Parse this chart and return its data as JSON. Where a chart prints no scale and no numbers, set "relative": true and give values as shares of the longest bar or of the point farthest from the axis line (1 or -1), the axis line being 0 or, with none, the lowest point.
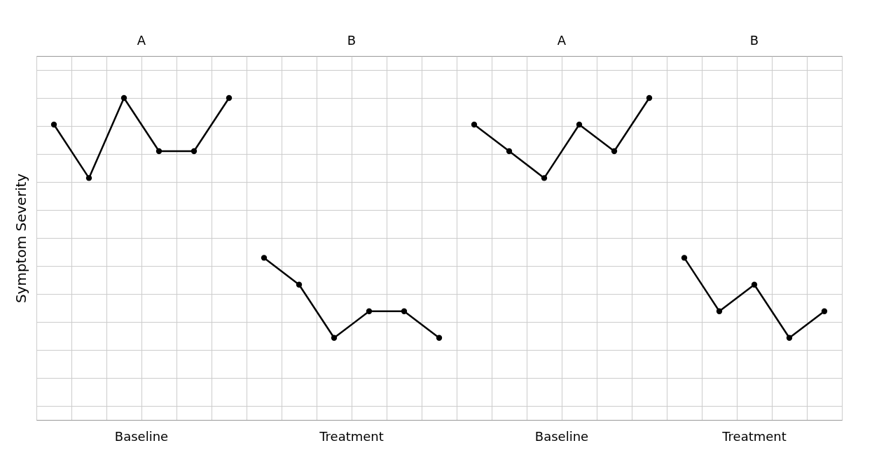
{
  "chart_data": {
    "type": "line",
    "relative": true,
    "ylabel": "Symptom Severity",
    "categories": [
      null,
      null,
      null,
      null,
      null,
      null,
      null,
      null,
      null,
      null,
      null,
      null,
      null,
      null,
      null,
      null,
      null,
      null,
      null,
      null,
      null,
      null,
      null
    ],
    "series": [
      {
        "color": "#000000",
        "values": [
          0.905,
          0.714,
          1,
          0.81,
          0.81,
          1,
          null,
          null,
          null,
          null,
          null,
          null,
          null,
          null,
          null,
          null,
          null,
          null,
          null,
          null,
          null,
          null,
          null
        ]
      },
      {
        "color": "#000000",
        "values": [
          null,
          null,
          null,
          null,
          null,
          null,
          0.429,
          0.333,
          0.143,
          0.238,
          0.238,
          0.143,
          null,
          null,
          null,
          null,
          null,
          null,
          null,
          null,
          null,
          null,
          null
        ]
      },
      {
        "color": "#000000",
        "values": [
          null,
          null,
          null,
          null,
          null,
          null,
          null,
          null,
          null,
          null,
          null,
          null,
          0.905,
          0.81,
          0.714,
          0.905,
          0.81,
          1,
          null,
          null,
          null,
          null,
          null
        ]
      },
      {
        "color": "#000000",
        "values": [
          null,
          null,
          null,
          null,
          null,
          null,
          null,
          null,
          null,
          null,
          null,
          null,
          null,
          null,
          null,
          null,
          null,
          null,
          0.429,
          0.238,
          0.333,
          0.143,
          0.238
        ]
      }
    ],
    "annotations": [
      "A",
      "B",
      "A",
      "B",
      "Baseline",
      "Treatment",
      "Baseline",
      "Treatment"
    ],
    "grid": true,
    "tick_labels": false,
    "marker": "circle",
    "line_style": "solid"
  }
}
